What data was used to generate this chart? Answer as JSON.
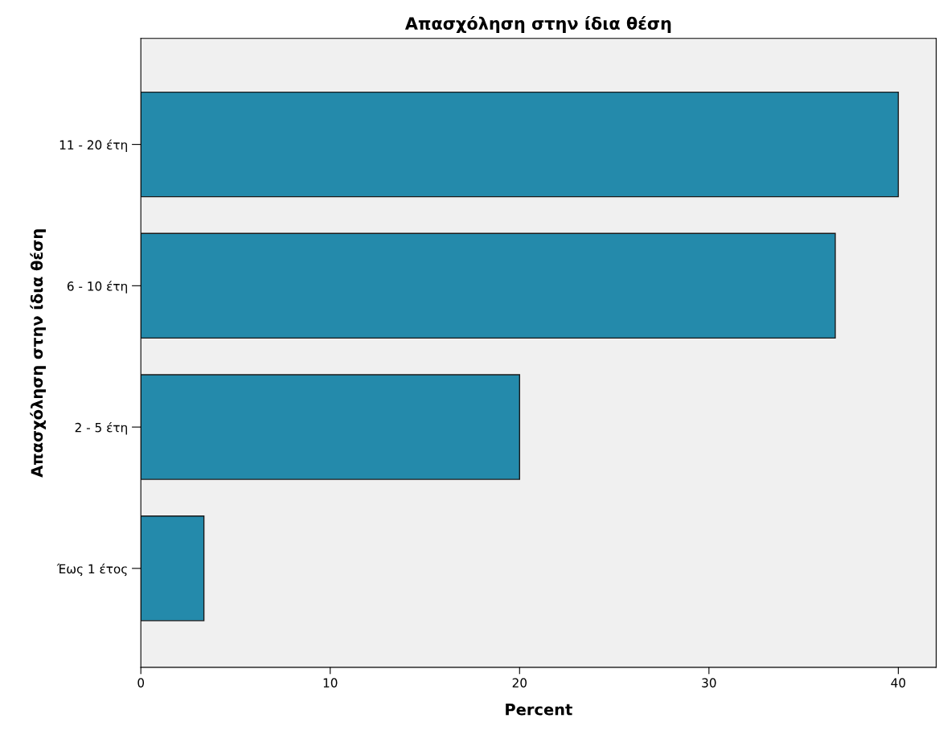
{
  "chart_data": {
    "type": "bar",
    "orientation": "horizontal",
    "title": "Απασχόληση στην ίδια θέση",
    "xlabel": "Percent",
    "ylabel": "Απασχόληση στην ίδια θέση",
    "categories": [
      "11 - 20 έτη",
      "6 - 10 έτη",
      "2 - 5 έτη",
      "Έως 1 έτος"
    ],
    "values": [
      40,
      36.67,
      20,
      3.33
    ],
    "color": "#248aab",
    "xlim": [
      0,
      42
    ],
    "xticks": [
      0,
      10,
      20,
      30,
      40
    ],
    "grid": false,
    "legend": false
  }
}
